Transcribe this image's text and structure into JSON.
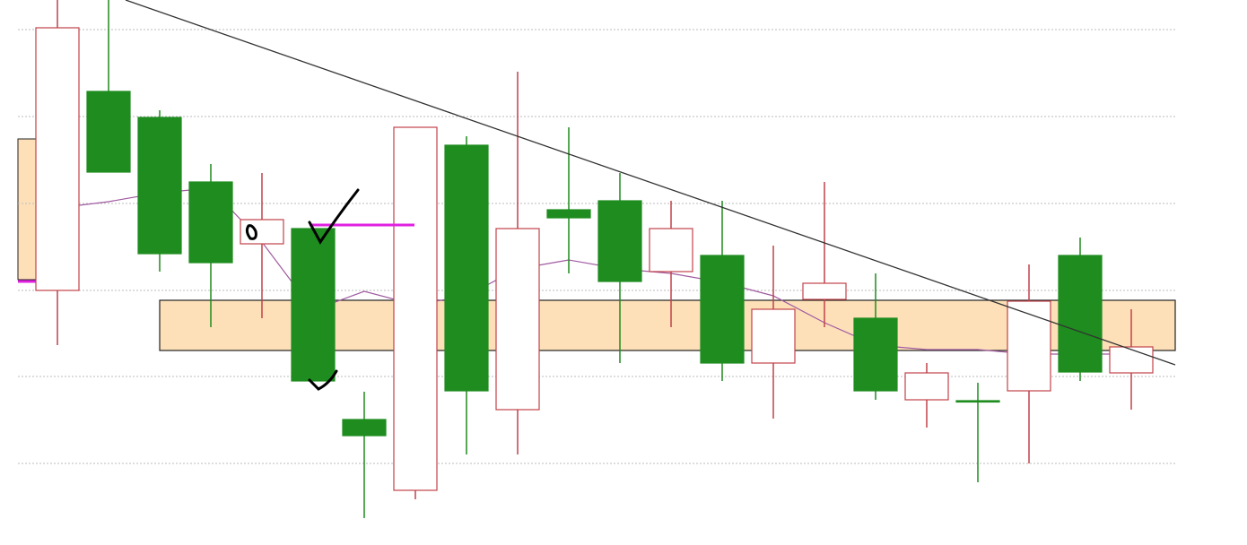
{
  "chart_data": {
    "type": "candlestick",
    "open": [
      284,
      506,
      477,
      405,
      336,
      353,
      140,
      61,
      446,
      151,
      374,
      384,
      305,
      323,
      203,
      274,
      253,
      162,
      161,
      172,
      323,
      192
    ],
    "high": [
      608,
      608,
      485,
      425,
      415,
      353,
      171,
      466,
      456,
      528,
      466,
      415,
      384,
      384,
      334,
      405,
      303,
      203,
      181,
      313,
      343,
      263
    ],
    "low": [
      223,
      416,
      305,
      243,
      253,
      183,
      30,
      51,
      101,
      101,
      303,
      203,
      243,
      183,
      141,
      243,
      162,
      131,
      70,
      91,
      183,
      151
    ],
    "close": [
      577,
      416,
      325,
      315,
      363,
      183,
      122,
      466,
      172,
      353,
      365,
      294,
      353,
      203,
      263,
      292,
      172,
      192,
      161,
      272,
      193,
      221
    ],
    "up_color": "#ffffff",
    "up_edge": "#c0424a",
    "down_color": "#1e8c1e",
    "down_edge": "#1e8c1e",
    "moving_average": [
      376,
      383,
      393,
      398,
      338,
      262,
      283,
      268,
      278,
      308,
      318,
      308,
      303,
      293,
      278,
      248,
      223,
      218,
      218,
      213,
      213,
      213
    ],
    "ma_color": "#a05aa0",
    "support_zone": [
      217,
      273
    ],
    "zone_color": "#fde0b8",
    "trendline": [
      608,
      201
    ],
    "level": 357,
    "level_color": "#e020e0",
    "ylim": [
      0,
      608
    ],
    "yticks": [
      91,
      188,
      284,
      381,
      478,
      575
    ],
    "grid": true
  }
}
